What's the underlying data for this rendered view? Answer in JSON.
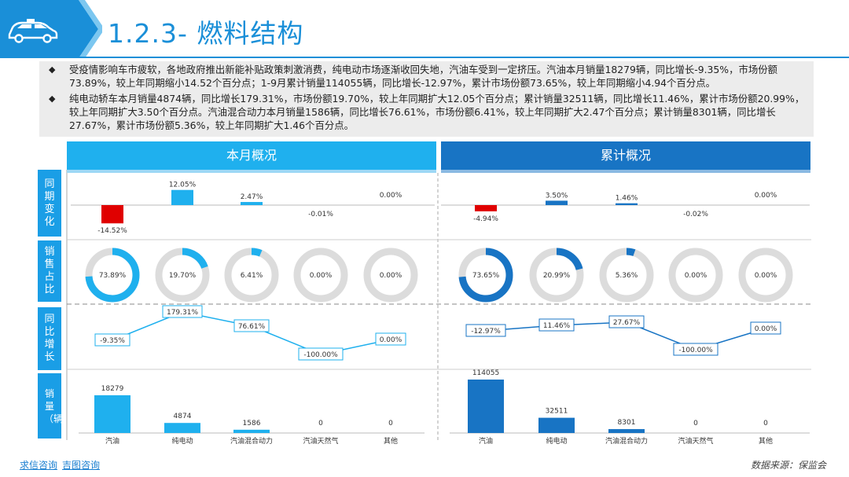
{
  "header": {
    "title": "1.2.3- 燃料结构"
  },
  "bullets": [
    "受疫情影响车市疲软，各地政府推出新能补贴政策刺激消费，纯电动市场逐渐收回失地，汽油车受到一定挤压。汽油本月销量18279辆，同比增长-9.35%，市场份额73.89%，较上年同期缩小14.52个百分点；1-9月累计销量114055辆，同比增长-12.97%，累计市场份额73.65%，较上年同期缩小4.94个百分点。",
    "纯电动轿车本月销量4874辆，同比增长179.31%，市场份额19.70%，较上年同期扩大12.05个百分点；累计销量32511辆，同比增长11.46%，累计市场份额20.99%，较上年同期扩大3.50个百分点。汽油混合动力本月销量1586辆，同比增长76.61%，市场份额6.41%，较上年同期扩大2.47个百分点；累计销量8301辆，同比增长27.67%，累计市场份额5.36%，较上年同期扩大1.46个百分点。"
  ],
  "sections": {
    "left": "本月概况",
    "right": "累计概况"
  },
  "row_labels": [
    "同期变化",
    "销售占比",
    "同比增长",
    "销量（辆）"
  ],
  "categories": [
    "汽油",
    "纯电动",
    "汽油混合动力",
    "汽油天然气",
    "其他"
  ],
  "chart_data": [
    {
      "type": "bar",
      "panel": "本月概况",
      "metric": "同期变化",
      "categories": [
        "汽油",
        "纯电动",
        "汽油混合动力",
        "汽油天然气",
        "其他"
      ],
      "values": [
        -14.52,
        12.05,
        2.47,
        -0.01,
        0.0
      ],
      "labels": [
        "-14.52%",
        "12.05%",
        "2.47%",
        "-0.01%",
        "0.00%"
      ]
    },
    {
      "type": "pie",
      "panel": "本月概况",
      "metric": "销售占比",
      "categories": [
        "汽油",
        "纯电动",
        "汽油混合动力",
        "汽油天然气",
        "其他"
      ],
      "values": [
        73.89,
        19.7,
        6.41,
        0.0,
        0.0
      ],
      "labels": [
        "73.89%",
        "19.70%",
        "6.41%",
        "0.00%",
        "0.00%"
      ]
    },
    {
      "type": "line",
      "panel": "本月概况",
      "metric": "同比增长",
      "categories": [
        "汽油",
        "纯电动",
        "汽油混合动力",
        "汽油天然气",
        "其他"
      ],
      "values": [
        -9.35,
        179.31,
        76.61,
        -100.0,
        0.0
      ],
      "labels": [
        "-9.35%",
        "179.31%",
        "76.61%",
        "-100.00%",
        "0.00%"
      ]
    },
    {
      "type": "bar",
      "panel": "本月概况",
      "metric": "销量（辆）",
      "categories": [
        "汽油",
        "纯电动",
        "汽油混合动力",
        "汽油天然气",
        "其他"
      ],
      "values": [
        18279,
        4874,
        1586,
        0,
        0
      ],
      "labels": [
        "18279",
        "4874",
        "1586",
        "0",
        "0"
      ]
    },
    {
      "type": "bar",
      "panel": "累计概况",
      "metric": "同期变化",
      "categories": [
        "汽油",
        "纯电动",
        "汽油混合动力",
        "汽油天然气",
        "其他"
      ],
      "values": [
        -4.94,
        3.5,
        1.46,
        -0.02,
        0.0
      ],
      "labels": [
        "-4.94%",
        "3.50%",
        "1.46%",
        "-0.02%",
        "0.00%"
      ]
    },
    {
      "type": "pie",
      "panel": "累计概况",
      "metric": "销售占比",
      "categories": [
        "汽油",
        "纯电动",
        "汽油混合动力",
        "汽油天然气",
        "其他"
      ],
      "values": [
        73.65,
        20.99,
        5.36,
        0.0,
        0.0
      ],
      "labels": [
        "73.65%",
        "20.99%",
        "5.36%",
        "0.00%",
        "0.00%"
      ]
    },
    {
      "type": "line",
      "panel": "累计概况",
      "metric": "同比增长",
      "categories": [
        "汽油",
        "纯电动",
        "汽油混合动力",
        "汽油天然气",
        "其他"
      ],
      "values": [
        -12.97,
        11.46,
        27.67,
        -100.0,
        0.0
      ],
      "labels": [
        "-12.97%",
        "11.46%",
        "27.67%",
        "-100.00%",
        "0.00%"
      ]
    },
    {
      "type": "bar",
      "panel": "累计概况",
      "metric": "销量（辆）",
      "categories": [
        "汽油",
        "纯电动",
        "汽油混合动力",
        "汽油天然气",
        "其他"
      ],
      "values": [
        114055,
        32511,
        8301,
        0,
        0
      ],
      "labels": [
        "114055",
        "32511",
        "8301",
        "0",
        "0"
      ]
    }
  ],
  "colors": {
    "brand": "#1a8fd8",
    "light_blue": "#1fb0ee",
    "dark_blue": "#1874c4",
    "negative": "#e00000",
    "ring_bg": "#dcdcdc"
  },
  "icons": {
    "logo": "taxi-car-icon",
    "bullet": "diamond-bullet-icon"
  },
  "footer": {
    "links": [
      "求信咨询",
      "吉图咨询"
    ],
    "source": "数据来源：保监会"
  }
}
